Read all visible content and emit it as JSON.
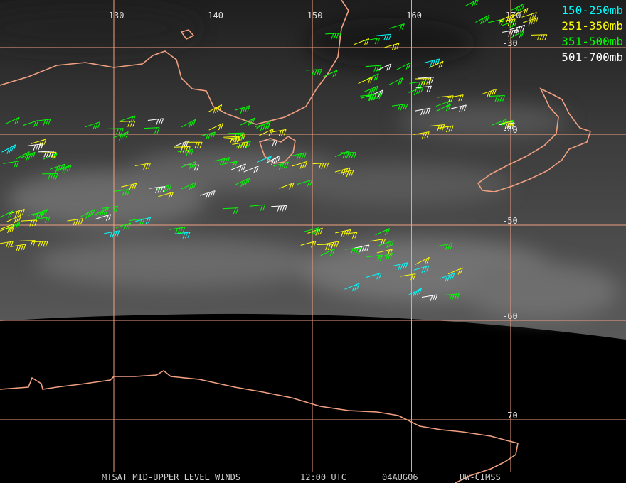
{
  "map": {
    "longitude_labels": [
      -130,
      -140,
      -150,
      -160,
      -170
    ],
    "latitude_labels": [
      -30,
      -40,
      -50,
      -60,
      -70
    ],
    "legend": [
      {
        "label": "150-250mb",
        "color": "#00ffff"
      },
      {
        "label": "251-350mb",
        "color": "#ffff00"
      },
      {
        "label": "351-500mb",
        "color": "#00ff00"
      },
      {
        "label": "501-700mb",
        "color": "#ffffff"
      }
    ],
    "footer": [
      "MTSAT MID-UPPER LEVEL WINDS",
      "12:00 UTC",
      "04AUG06",
      "UW-CIMSS"
    ]
  }
}
